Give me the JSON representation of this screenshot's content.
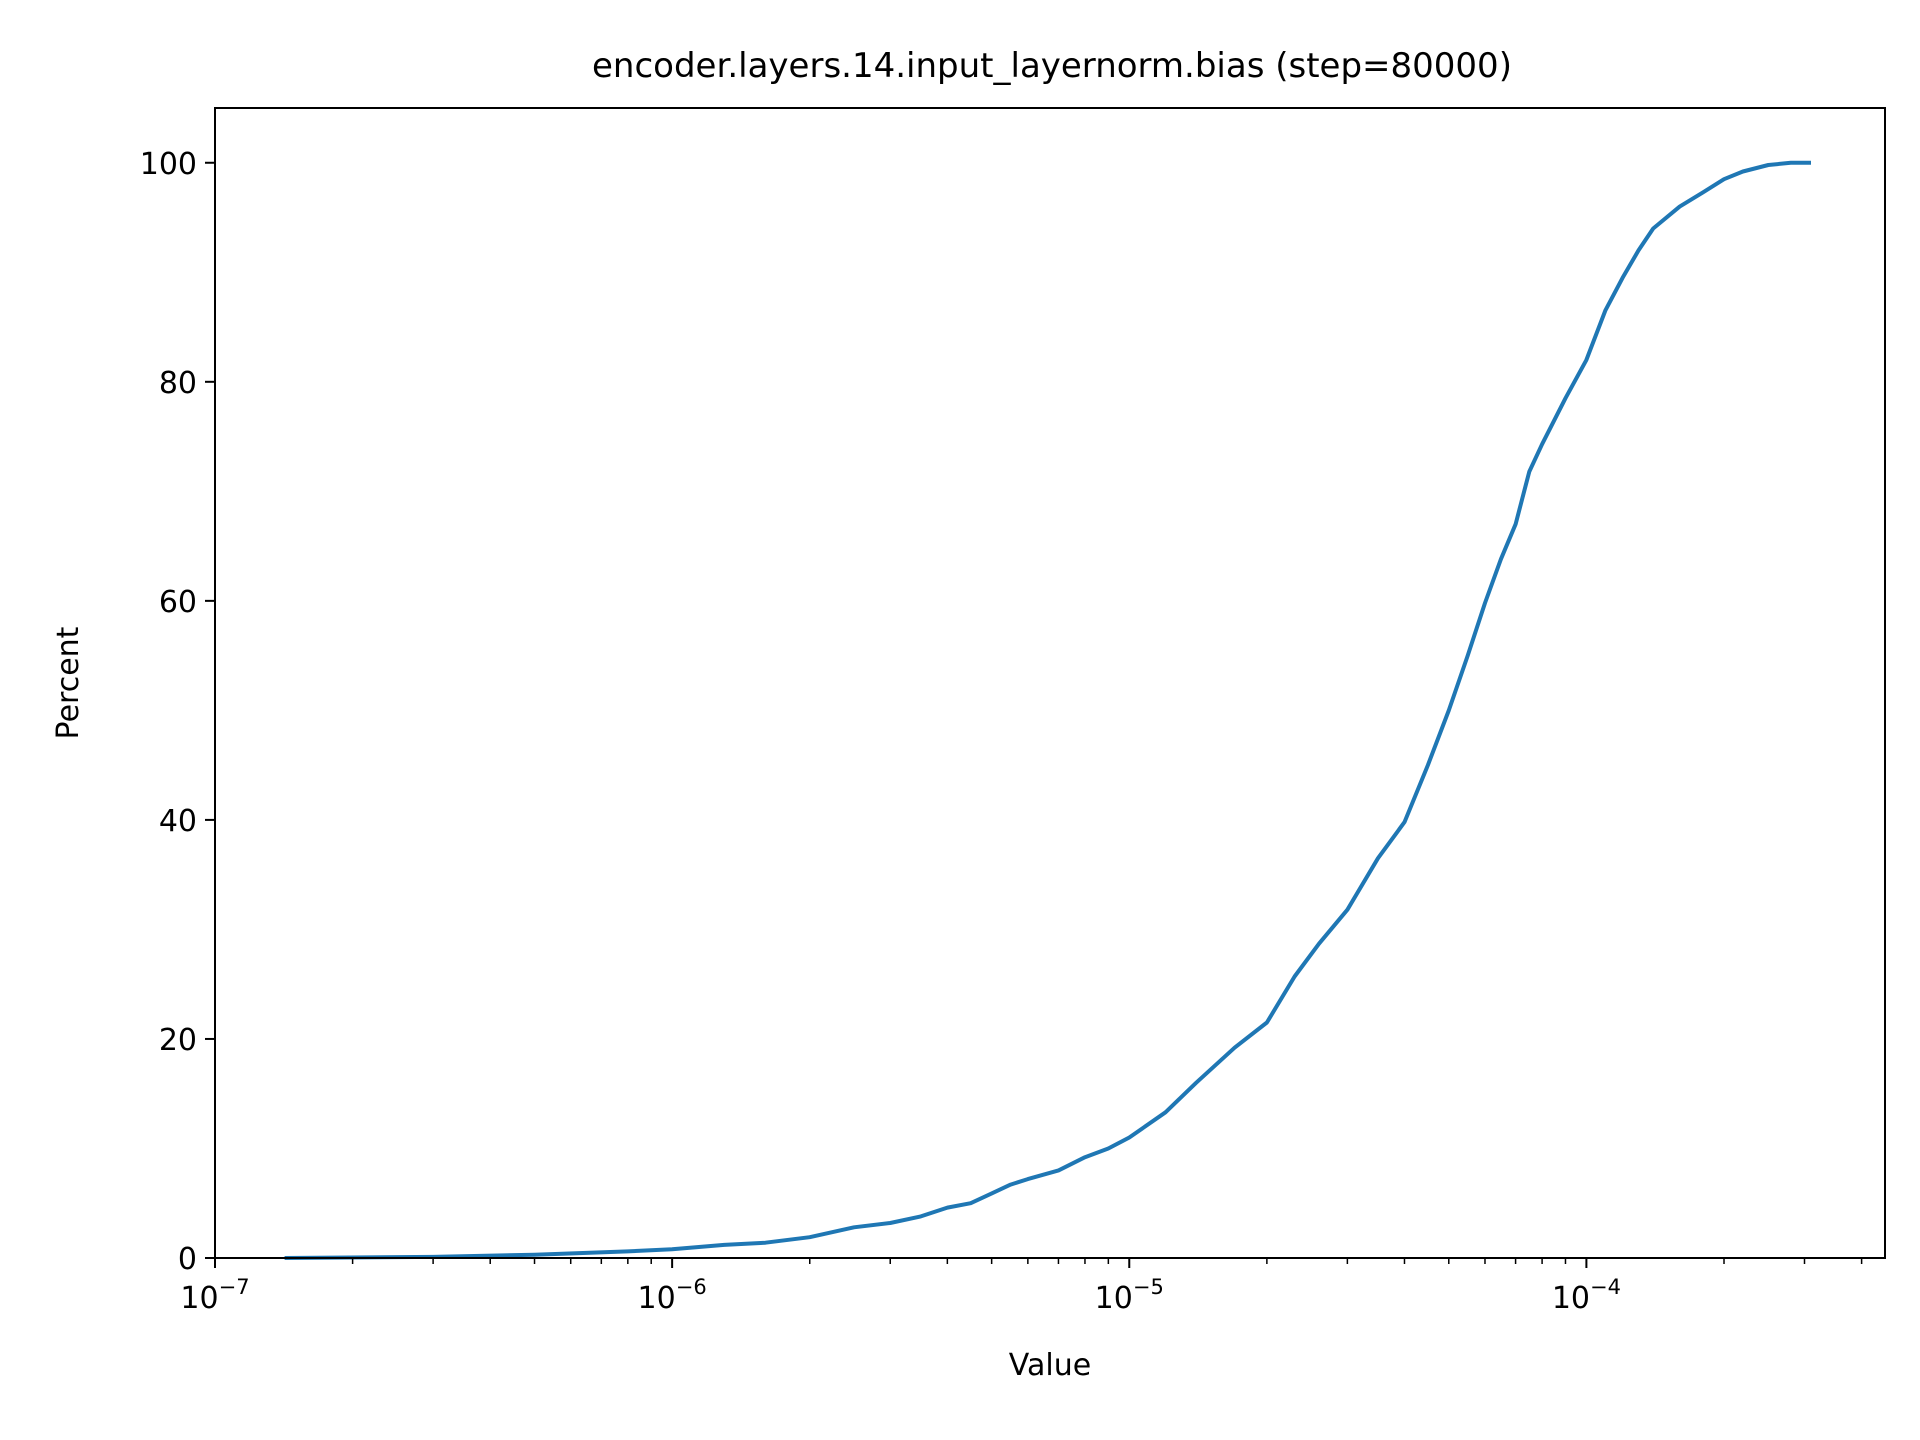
{
  "chart_data": {
    "type": "line",
    "title": "encoder.layers.14.input_layernorm.bias (step=80000)",
    "xlabel": "Value",
    "ylabel": "Percent",
    "xscale": "log",
    "xlim": [
      1e-07,
      0.00045
    ],
    "ylim": [
      0,
      105
    ],
    "grid": false,
    "x_ticks": [
      {
        "value": 1e-07,
        "base": "10",
        "exp": "−7"
      },
      {
        "value": 1e-06,
        "base": "10",
        "exp": "−6"
      },
      {
        "value": 1e-05,
        "base": "10",
        "exp": "−5"
      },
      {
        "value": 0.0001,
        "base": "10",
        "exp": "−4"
      }
    ],
    "y_ticks": [
      {
        "value": 0,
        "label": "0"
      },
      {
        "value": 20,
        "label": "20"
      },
      {
        "value": 40,
        "label": "40"
      },
      {
        "value": 60,
        "label": "60"
      },
      {
        "value": 80,
        "label": "80"
      },
      {
        "value": 100,
        "label": "100"
      }
    ],
    "series": [
      {
        "color": "#1f77b4",
        "x": [
          1.42e-07,
          3e-07,
          5e-07,
          8e-07,
          1e-06,
          1.3e-06,
          1.6e-06,
          2e-06,
          2.5e-06,
          3e-06,
          3.5e-06,
          4e-06,
          4.5e-06,
          5e-06,
          5.5e-06,
          6e-06,
          7e-06,
          8e-06,
          9e-06,
          1e-05,
          1.2e-05,
          1.4e-05,
          1.7e-05,
          2e-05,
          2.3e-05,
          2.6e-05,
          3e-05,
          3.5e-05,
          4e-05,
          4.5e-05,
          5e-05,
          5.5e-05,
          6e-05,
          6.5e-05,
          7e-05,
          7.5e-05,
          8e-05,
          9e-05,
          0.0001,
          0.00011,
          0.00012,
          0.00013,
          0.00014,
          0.00016,
          0.00018,
          0.0002,
          0.00022,
          0.00025,
          0.00028,
          0.00031
        ],
        "y": [
          0.0,
          0.1,
          0.3,
          0.6,
          0.8,
          1.2,
          1.4,
          1.9,
          2.8,
          3.2,
          3.8,
          4.6,
          5.0,
          5.9,
          6.7,
          7.2,
          8.0,
          9.2,
          10.0,
          11.0,
          13.3,
          16.0,
          19.2,
          21.5,
          25.7,
          28.7,
          31.8,
          36.5,
          39.8,
          45.0,
          50.0,
          55.0,
          59.8,
          63.8,
          67.0,
          71.8,
          74.3,
          78.5,
          82.0,
          86.5,
          89.5,
          92.0,
          94.0,
          96.0,
          97.3,
          98.5,
          99.2,
          99.8,
          100.0,
          100.0
        ]
      }
    ]
  }
}
